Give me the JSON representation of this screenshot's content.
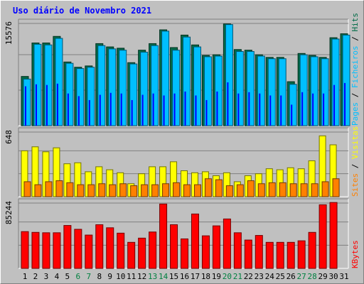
{
  "chart_data": {
    "type": "bar",
    "title": "Uso diário de Novembro 2021",
    "categories": [
      "1",
      "2",
      "3",
      "4",
      "5",
      "6",
      "7",
      "8",
      "9",
      "10",
      "11",
      "12",
      "13",
      "14",
      "15",
      "16",
      "17",
      "18",
      "19",
      "20",
      "21",
      "22",
      "23",
      "24",
      "25",
      "26",
      "27",
      "28",
      "29",
      "30",
      "31"
    ],
    "weekend_days": [
      "6",
      "7",
      "13",
      "14",
      "20",
      "21",
      "27",
      "28"
    ],
    "panels": [
      {
        "id": "hits",
        "max_label": "15576",
        "ymax": 15576,
        "axis_labels": [
          "Pages",
          "Ficheiros",
          "Hits"
        ],
        "series": [
          {
            "name": "Hits",
            "color": "#006b47",
            "values": [
              7500,
              12600,
              12600,
              13600,
              9700,
              8900,
              9100,
              12500,
              12000,
              11800,
              9600,
              11500,
              12500,
              14600,
              11900,
              13800,
              12300,
              10700,
              10800,
              15500,
              11600,
              11500,
              10800,
              10400,
              10400,
              6700,
              11000,
              10700,
              10400,
              13400,
              14000
            ]
          },
          {
            "name": "Ficheiros",
            "color": "#00bfff",
            "values": [
              7100,
              12400,
              12300,
              13300,
              9500,
              8700,
              8900,
              12200,
              11700,
              11500,
              9400,
              11200,
              12200,
              14400,
              11500,
              13500,
              12000,
              10500,
              10600,
              15400,
              11300,
              11300,
              10600,
              10200,
              10200,
              6300,
              10800,
              10500,
              10200,
              13200,
              13800
            ]
          },
          {
            "name": "Pages",
            "color": "#0000ff",
            "values": [
              6000,
              6300,
              6200,
              6400,
              4900,
              4500,
              3900,
              4700,
              5000,
              4900,
              3900,
              4700,
              4900,
              4600,
              4900,
              5200,
              4600,
              3900,
              5200,
              6600,
              4900,
              5100,
              4900,
              4600,
              4600,
              3200,
              5100,
              4900,
              4900,
              6200,
              6500
            ]
          }
        ]
      },
      {
        "id": "visits",
        "max_label": "648",
        "ymax": 648,
        "axis_labels": [
          "Sites",
          "Visitas"
        ],
        "series": [
          {
            "name": "Visitas",
            "color": "#ffff00",
            "values": [
              460,
              500,
              450,
              490,
              330,
              340,
              250,
              300,
              270,
              240,
              130,
              230,
              300,
              300,
              350,
              260,
              240,
              250,
              210,
              240,
              150,
              210,
              230,
              280,
              270,
              290,
              280,
              360,
              610,
              520,
              0
            ]
          },
          {
            "name": "Sites",
            "color": "#ff8000",
            "values": [
              150,
              120,
              150,
              160,
              140,
              120,
              120,
              130,
              120,
              130,
              110,
              120,
              120,
              130,
              140,
              120,
              120,
              180,
              170,
              110,
              120,
              160,
              130,
              140,
              140,
              130,
              130,
              130,
              150,
              180,
              0
            ]
          }
        ]
      },
      {
        "id": "kbytes",
        "max_label": "85244",
        "ymax": 85244,
        "axis_labels": [
          "KBytes"
        ],
        "series": [
          {
            "name": "KBytes",
            "color": "#ff0000",
            "values": [
              48000,
              47000,
              46500,
              46500,
              56000,
              51000,
              43500,
              57000,
              53000,
              46000,
              34000,
              39500,
              47500,
              84000,
              57000,
              38500,
              71000,
              42500,
              55500,
              64500,
              46500,
              37000,
              43000,
              34000,
              34000,
              34000,
              36000,
              47000,
              83000,
              86000,
              0
            ]
          }
        ]
      }
    ]
  }
}
